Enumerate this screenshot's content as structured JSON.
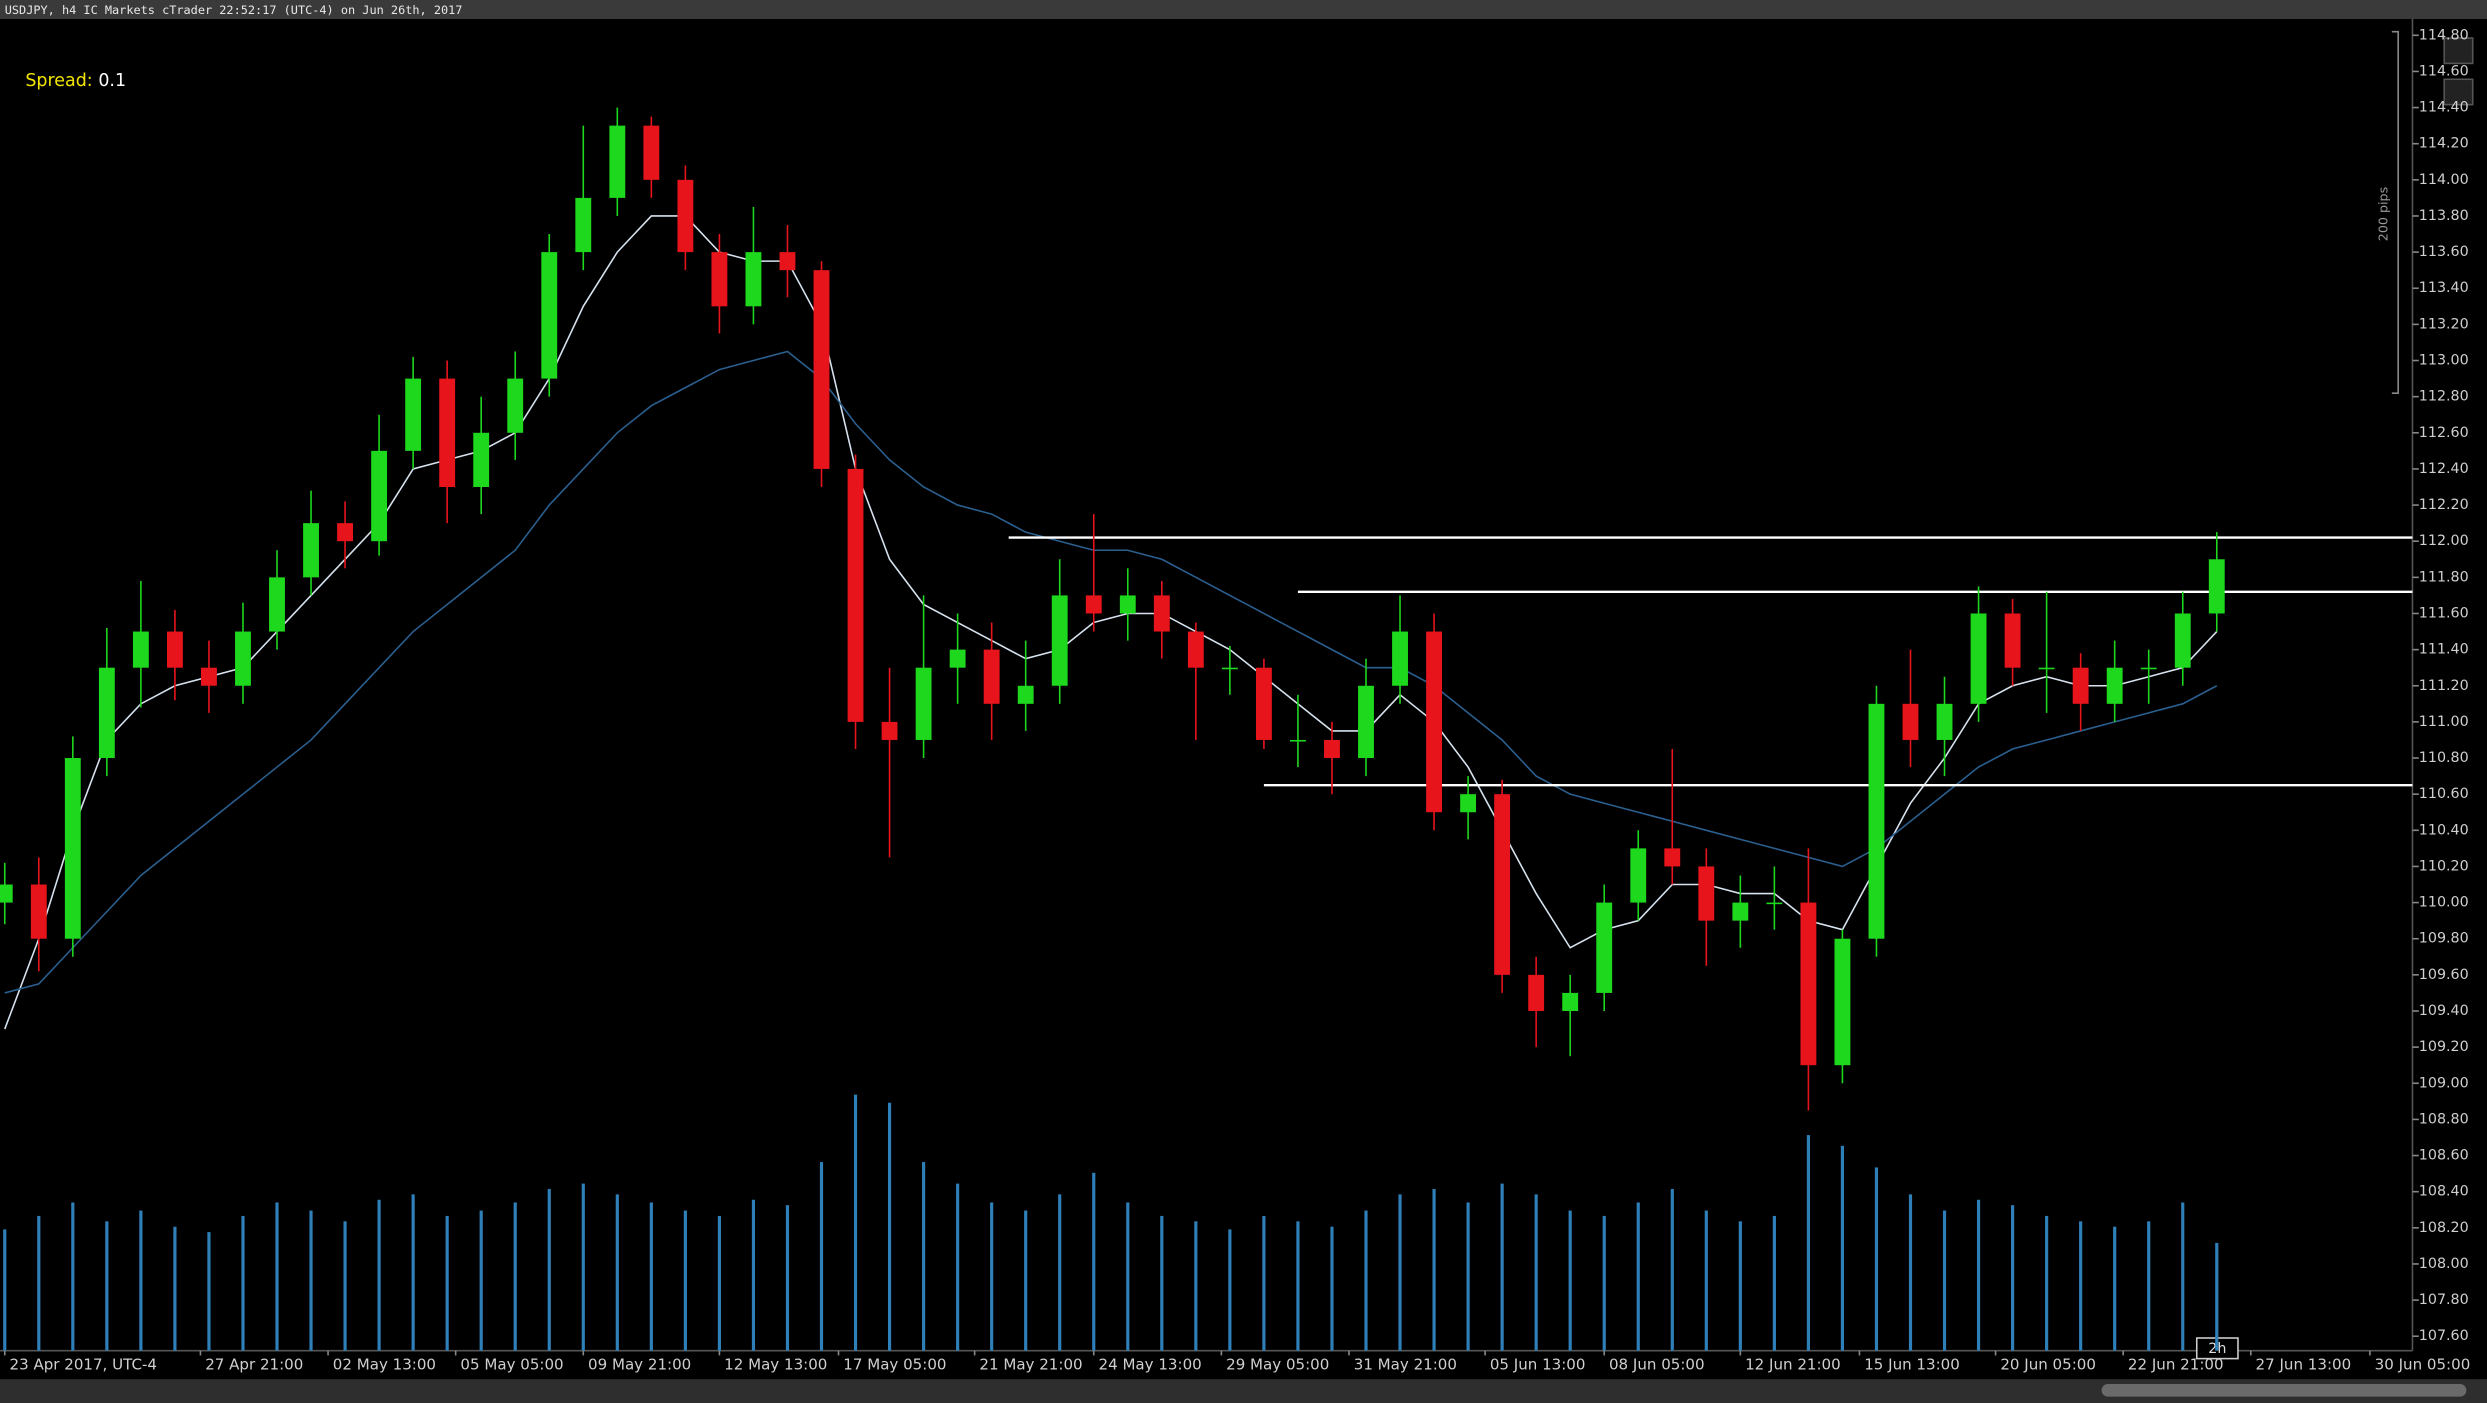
{
  "chart_data": {
    "type": "candlestick",
    "title": "USDJPY, h4 IC Markets cTrader 22:52:17 (UTC-4) on Jun 26th, 2017",
    "spread_label": "Spread:",
    "spread": 0.1,
    "range_label": "200 pips",
    "countdown": "2h",
    "up_color": "#1ed81e",
    "down_color": "#e8141c",
    "volume_color": "#2f7fb8",
    "xlim": [
      0,
      283
    ],
    "xticks": [
      {
        "value": 0,
        "label": "23 Apr 2017, UTC-4"
      },
      {
        "value": 23,
        "label": "27 Apr 21:00"
      },
      {
        "value": 38,
        "label": "02 May 13:00"
      },
      {
        "value": 53,
        "label": "05 May 05:00"
      },
      {
        "value": 68,
        "label": "09 May 21:00"
      },
      {
        "value": 84,
        "label": "12 May 13:00"
      },
      {
        "value": 98,
        "label": "17 May 05:00"
      },
      {
        "value": 114,
        "label": "21 May 21:00"
      },
      {
        "value": 128,
        "label": "24 May 13:00"
      },
      {
        "value": 143,
        "label": "29 May 05:00"
      },
      {
        "value": 158,
        "label": "31 May 21:00"
      },
      {
        "value": 174,
        "label": "05 Jun 13:00"
      },
      {
        "value": 188,
        "label": "08 Jun 05:00"
      },
      {
        "value": 204,
        "label": "12 Jun 21:00"
      },
      {
        "value": 218,
        "label": "15 Jun 13:00"
      },
      {
        "value": 234,
        "label": "20 Jun 05:00"
      },
      {
        "value": 249,
        "label": "22 Jun 21:00"
      },
      {
        "value": 264,
        "label": "27 Jun 13:00"
      },
      {
        "value": 278,
        "label": "30 Jun 05:00"
      }
    ],
    "ylim": [
      107.52,
      114.89
    ],
    "yticks": [
      {
        "value": 107.6,
        "label": "107.60"
      },
      {
        "value": 107.8,
        "label": "107.80"
      },
      {
        "value": 108,
        "label": "108.00"
      },
      {
        "value": 108.2,
        "label": "108.20"
      },
      {
        "value": 108.4,
        "label": "108.40"
      },
      {
        "value": 108.6,
        "label": "108.60"
      },
      {
        "value": 108.8,
        "label": "108.80"
      },
      {
        "value": 109,
        "label": "109.00"
      },
      {
        "value": 109.2,
        "label": "109.20"
      },
      {
        "value": 109.4,
        "label": "109.40"
      },
      {
        "value": 109.6,
        "label": "109.60"
      },
      {
        "value": 109.8,
        "label": "109.80"
      },
      {
        "value": 110,
        "label": "110.00"
      },
      {
        "value": 110.2,
        "label": "110.20"
      },
      {
        "value": 110.4,
        "label": "110.40"
      },
      {
        "value": 110.6,
        "label": "110.60"
      },
      {
        "value": 110.8,
        "label": "110.80"
      },
      {
        "value": 111,
        "label": "111.00"
      },
      {
        "value": 111.2,
        "label": "111.20"
      },
      {
        "value": 111.4,
        "label": "111.40"
      },
      {
        "value": 111.6,
        "label": "111.60"
      },
      {
        "value": 111.8,
        "label": "111.80"
      },
      {
        "value": 112,
        "label": "112.00"
      },
      {
        "value": 112.2,
        "label": "112.20"
      },
      {
        "value": 112.4,
        "label": "112.40"
      },
      {
        "value": 112.6,
        "label": "112.60"
      },
      {
        "value": 112.8,
        "label": "112.80"
      },
      {
        "value": 113,
        "label": "113.00"
      },
      {
        "value": 113.2,
        "label": "113.20"
      },
      {
        "value": 113.4,
        "label": "113.40"
      },
      {
        "value": 113.6,
        "label": "113.60"
      },
      {
        "value": 113.8,
        "label": "113.80"
      },
      {
        "value": 114,
        "label": "114.00"
      },
      {
        "value": 114.2,
        "label": "114.20"
      },
      {
        "value": 114.4,
        "label": "114.40"
      },
      {
        "value": 114.6,
        "label": "114.60"
      },
      {
        "value": 114.8,
        "label": "114.80"
      }
    ],
    "x": [
      0,
      4,
      8,
      12,
      16,
      20,
      24,
      28,
      32,
      36,
      40,
      44,
      48,
      52,
      56,
      60,
      64,
      68,
      72,
      76,
      80,
      84,
      88,
      92,
      96,
      100,
      104,
      108,
      112,
      116,
      120,
      124,
      128,
      132,
      136,
      140,
      144,
      148,
      152,
      156,
      160,
      164,
      168,
      172,
      176,
      180,
      184,
      188,
      192,
      196,
      200,
      204,
      208,
      212,
      216,
      220,
      224,
      228,
      232,
      236,
      240,
      244,
      248,
      252,
      256,
      260
    ],
    "open": [
      110.0,
      110.1,
      109.8,
      110.8,
      111.3,
      111.5,
      111.3,
      111.2,
      111.5,
      111.8,
      112.1,
      112.0,
      112.5,
      112.9,
      112.3,
      112.6,
      112.9,
      113.6,
      113.9,
      114.3,
      114.0,
      113.6,
      113.3,
      113.6,
      113.5,
      112.4,
      111.0,
      110.9,
      111.3,
      111.4,
      111.1,
      111.2,
      111.7,
      111.6,
      111.7,
      111.5,
      111.3,
      111.3,
      110.9,
      110.9,
      110.8,
      111.2,
      111.5,
      110.5,
      110.6,
      109.6,
      109.4,
      109.5,
      110.0,
      110.3,
      110.2,
      109.9,
      110.0,
      110.0,
      109.1,
      109.8,
      111.1,
      110.9,
      111.1,
      111.6,
      111.3,
      111.3,
      111.1,
      111.3,
      111.3,
      111.6
    ],
    "high": [
      110.22,
      110.25,
      110.92,
      111.52,
      111.78,
      111.62,
      111.45,
      111.66,
      111.95,
      112.28,
      112.22,
      112.7,
      113.02,
      113.0,
      112.8,
      113.05,
      113.7,
      114.3,
      114.4,
      114.35,
      114.08,
      113.7,
      113.85,
      113.75,
      113.55,
      112.48,
      111.3,
      111.7,
      111.6,
      111.55,
      111.45,
      111.9,
      112.15,
      111.85,
      111.78,
      111.55,
      111.42,
      111.35,
      111.15,
      111.0,
      111.35,
      111.7,
      111.6,
      110.7,
      110.68,
      109.7,
      109.6,
      110.1,
      110.4,
      110.85,
      110.3,
      110.15,
      110.2,
      110.3,
      109.85,
      111.2,
      111.4,
      111.25,
      111.75,
      111.68,
      111.72,
      111.38,
      111.45,
      111.4,
      111.72,
      112.05
    ],
    "low": [
      109.88,
      109.62,
      109.7,
      110.7,
      111.08,
      111.12,
      111.05,
      111.1,
      111.4,
      111.7,
      111.85,
      111.92,
      112.4,
      112.1,
      112.15,
      112.45,
      112.8,
      113.5,
      113.8,
      113.9,
      113.5,
      113.15,
      113.2,
      113.35,
      112.3,
      110.85,
      110.25,
      110.8,
      111.1,
      110.9,
      110.95,
      111.1,
      111.5,
      111.45,
      111.35,
      110.9,
      111.15,
      110.85,
      110.75,
      110.6,
      110.7,
      111.1,
      110.4,
      110.35,
      109.5,
      109.2,
      109.15,
      109.4,
      109.9,
      110.1,
      109.65,
      109.75,
      109.85,
      108.85,
      109.0,
      109.7,
      110.75,
      110.7,
      111.0,
      111.2,
      111.05,
      110.95,
      111.0,
      111.1,
      111.2,
      111.5
    ],
    "close": [
      110.1,
      109.8,
      110.8,
      111.3,
      111.5,
      111.3,
      111.2,
      111.5,
      111.8,
      112.1,
      112.0,
      112.5,
      112.9,
      112.3,
      112.6,
      112.9,
      113.6,
      113.9,
      114.3,
      114.0,
      113.6,
      113.3,
      113.6,
      113.5,
      112.4,
      111.0,
      110.9,
      111.3,
      111.4,
      111.1,
      111.2,
      111.7,
      111.6,
      111.7,
      111.5,
      111.3,
      111.3,
      110.9,
      110.9,
      110.8,
      111.2,
      111.5,
      110.5,
      110.6,
      109.6,
      109.4,
      109.5,
      110.0,
      110.3,
      110.2,
      109.9,
      110.0,
      110.0,
      109.1,
      109.8,
      111.1,
      110.9,
      111.1,
      111.6,
      111.3,
      111.3,
      111.1,
      111.3,
      111.3,
      111.6,
      111.9
    ],
    "volume": [
      45,
      50,
      55,
      48,
      52,
      46,
      44,
      50,
      55,
      52,
      48,
      56,
      58,
      50,
      52,
      55,
      60,
      62,
      58,
      55,
      52,
      50,
      56,
      54,
      70,
      95,
      92,
      70,
      62,
      55,
      52,
      58,
      66,
      55,
      50,
      48,
      45,
      50,
      48,
      46,
      52,
      58,
      60,
      55,
      62,
      58,
      52,
      50,
      55,
      60,
      52,
      48,
      50,
      80,
      76,
      68,
      58,
      52,
      56,
      54,
      50,
      48,
      46,
      48,
      55,
      40
    ],
    "lines": [
      {
        "color": "#d6e2ee",
        "values": [
          109.3,
          109.8,
          110.4,
          110.9,
          111.1,
          111.2,
          111.25,
          111.3,
          111.5,
          111.7,
          111.9,
          112.1,
          112.4,
          112.45,
          112.5,
          112.6,
          112.9,
          113.3,
          113.6,
          113.8,
          113.8,
          113.6,
          113.55,
          113.55,
          113.2,
          112.4,
          111.9,
          111.65,
          111.55,
          111.45,
          111.35,
          111.4,
          111.55,
          111.6,
          111.6,
          111.5,
          111.4,
          111.25,
          111.1,
          110.95,
          110.95,
          111.15,
          111.0,
          110.75,
          110.4,
          110.05,
          109.75,
          109.85,
          109.9,
          110.1,
          110.1,
          110.05,
          110.05,
          109.9,
          109.85,
          110.2,
          110.55,
          110.8,
          111.1,
          111.2,
          111.25,
          111.2,
          111.2,
          111.25,
          111.3,
          111.5
        ]
      },
      {
        "color": "#2b5f8f",
        "values": [
          109.5,
          109.55,
          109.75,
          109.95,
          110.15,
          110.3,
          110.45,
          110.6,
          110.75,
          110.9,
          111.1,
          111.3,
          111.5,
          111.65,
          111.8,
          111.95,
          112.2,
          112.4,
          112.6,
          112.75,
          112.85,
          112.95,
          113.0,
          113.05,
          112.9,
          112.65,
          112.45,
          112.3,
          112.2,
          112.15,
          112.05,
          112.0,
          111.95,
          111.95,
          111.9,
          111.8,
          111.7,
          111.6,
          111.5,
          111.4,
          111.3,
          111.3,
          111.2,
          111.05,
          110.9,
          110.7,
          110.6,
          110.55,
          110.5,
          110.45,
          110.4,
          110.35,
          110.3,
          110.25,
          110.2,
          110.3,
          110.45,
          110.6,
          110.75,
          110.85,
          110.9,
          110.95,
          111.0,
          111.05,
          111.1,
          111.2
        ]
      }
    ],
    "hlines": [
      {
        "value": 112.02,
        "from": 118
      },
      {
        "value": 111.72,
        "from": 152
      },
      {
        "value": 110.65,
        "from": 148
      }
    ]
  }
}
